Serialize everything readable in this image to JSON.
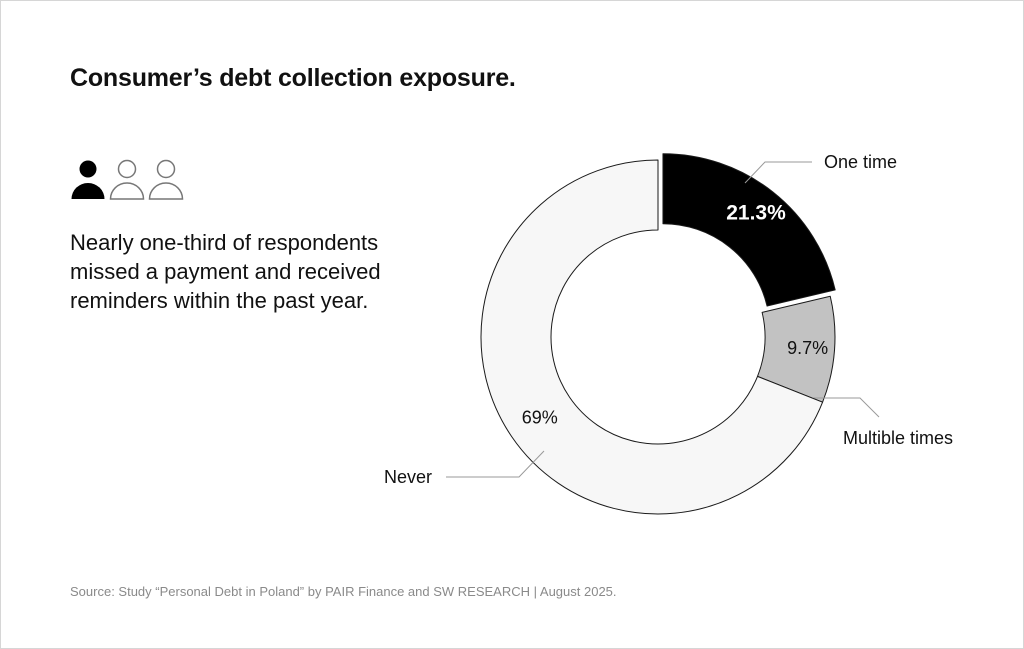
{
  "header": {
    "title": "Consumer’s debt collection exposure."
  },
  "summary": {
    "text": "Nearly one-third of respondents missed a payment and received reminders within the past year.",
    "icons": [
      "person-filled-icon",
      "person-outline-icon",
      "person-outline-icon"
    ]
  },
  "footer": {
    "source": "Source: Study “Personal Debt in Poland” by PAIR Finance and SW RESEARCH | August 2025."
  },
  "colors": {
    "one_time": "#000000",
    "multiple_times": "#c2c2c2",
    "never": "#f7f7f7",
    "outline": "#1a1a1a",
    "leader": "#9a9a9a"
  },
  "chart_data": {
    "type": "pie",
    "style": "donut",
    "unit": "%",
    "exploded": "One time",
    "slices": [
      {
        "label": "One time",
        "value": 21.3,
        "display": "21.3%"
      },
      {
        "label": "Multible times",
        "value": 9.7,
        "display": "9.7%"
      },
      {
        "label": "Never",
        "value": 69,
        "display": "69%"
      }
    ]
  }
}
